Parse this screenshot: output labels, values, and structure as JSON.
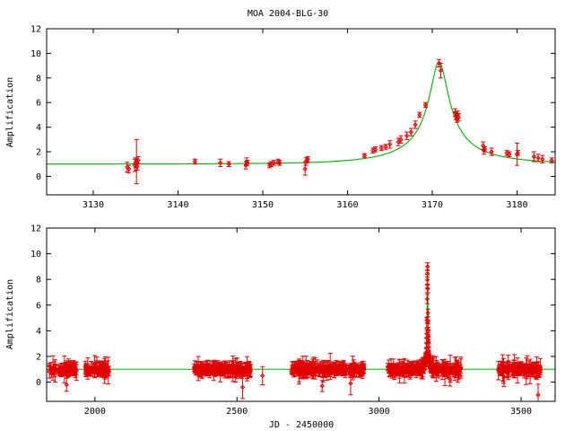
{
  "title": "MOA 2004-BLG-30",
  "chart_data": [
    {
      "type": "scatter",
      "title": "MOA 2004-BLG-30",
      "xlabel": "",
      "ylabel": "Amplification",
      "xlim": [
        3124.5,
        3184.5
      ],
      "ylim": [
        -1.5,
        12
      ],
      "xticks": [
        3130,
        3140,
        3150,
        3160,
        3170,
        3180
      ],
      "yticks": [
        0,
        2,
        4,
        6,
        8,
        10,
        12
      ],
      "grid": false,
      "legend": "none",
      "model": {
        "t0": 3170.8,
        "u0": 0.108,
        "tE": 10.2
      },
      "model_color": "#00b000",
      "point_color": "#e00000",
      "points": [
        [
          3134.0,
          0.75,
          0.4
        ],
        [
          3134.2,
          0.6,
          0.3
        ],
        [
          3134.9,
          0.9,
          0.5
        ],
        [
          3135.0,
          1.1,
          0.4
        ],
        [
          3135.1,
          1.2,
          1.8
        ],
        [
          3135.2,
          0.8,
          0.3
        ],
        [
          3135.3,
          1.3,
          0.3
        ],
        [
          3142.0,
          1.2,
          0.2
        ],
        [
          3145.0,
          1.1,
          0.3
        ],
        [
          3146.0,
          1.0,
          0.2
        ],
        [
          3148.0,
          0.9,
          0.3
        ],
        [
          3148.1,
          1.2,
          0.3
        ],
        [
          3148.2,
          1.1,
          0.2
        ],
        [
          3150.8,
          0.9,
          0.2
        ],
        [
          3151.0,
          1.0,
          0.2
        ],
        [
          3151.3,
          1.1,
          0.2
        ],
        [
          3151.8,
          1.2,
          0.2
        ],
        [
          3152.0,
          1.1,
          0.2
        ],
        [
          3155.0,
          0.6,
          0.5
        ],
        [
          3155.1,
          1.2,
          0.3
        ],
        [
          3155.2,
          1.3,
          0.2
        ],
        [
          3155.3,
          1.4,
          0.2
        ],
        [
          3162.0,
          1.7,
          0.15
        ],
        [
          3163.0,
          2.1,
          0.2
        ],
        [
          3163.3,
          2.2,
          0.2
        ],
        [
          3164.0,
          2.3,
          0.2
        ],
        [
          3164.5,
          2.4,
          0.2
        ],
        [
          3165.0,
          2.6,
          0.3
        ],
        [
          3166.0,
          2.8,
          0.3
        ],
        [
          3166.3,
          3.0,
          0.3
        ],
        [
          3167.0,
          3.3,
          0.3
        ],
        [
          3167.5,
          3.6,
          0.3
        ],
        [
          3168.0,
          4.2,
          0.3
        ],
        [
          3168.5,
          5.0,
          0.2
        ],
        [
          3169.2,
          5.8,
          0.2
        ],
        [
          3170.8,
          9.2,
          0.3
        ],
        [
          3171.0,
          8.6,
          0.6
        ],
        [
          3172.7,
          5.2,
          0.3
        ],
        [
          3172.8,
          4.9,
          0.3
        ],
        [
          3172.9,
          4.7,
          0.3
        ],
        [
          3173.0,
          5.0,
          0.3
        ],
        [
          3173.1,
          4.8,
          0.3
        ],
        [
          3176.0,
          2.5,
          0.3
        ],
        [
          3176.1,
          2.1,
          0.3
        ],
        [
          3176.2,
          2.2,
          0.2
        ],
        [
          3177.0,
          2.0,
          0.3
        ],
        [
          3178.8,
          1.9,
          0.2
        ],
        [
          3179.1,
          1.8,
          0.2
        ],
        [
          3180.0,
          1.8,
          0.9
        ],
        [
          3180.1,
          1.9,
          0.2
        ],
        [
          3182.0,
          1.6,
          0.4
        ],
        [
          3182.5,
          1.5,
          0.3
        ],
        [
          3183.0,
          1.4,
          0.3
        ],
        [
          3184.1,
          1.3,
          0.2
        ]
      ]
    },
    {
      "type": "scatter",
      "title": "",
      "xlabel": "JD - 2450000",
      "ylabel": "Amplification",
      "xlim": [
        1830,
        3620
      ],
      "ylim": [
        -1.5,
        12
      ],
      "xticks": [
        2000,
        2500,
        3000,
        3500
      ],
      "yticks": [
        0,
        2,
        4,
        6,
        8,
        10,
        12
      ],
      "grid": false,
      "legend": "none",
      "model": {
        "t0": 3170.8,
        "u0": 0.108,
        "tE": 10.2
      },
      "model_color": "#00b000",
      "point_color": "#e00000",
      "seasons": [
        [
          1840,
          1935
        ],
        [
          1965,
          2050
        ],
        [
          2350,
          2550
        ],
        [
          2690,
          2950
        ],
        [
          3030,
          3290
        ],
        [
          3420,
          3570
        ]
      ],
      "outliers": [
        [
          1900,
          -0.2
        ],
        [
          2520,
          -0.4
        ],
        [
          2590,
          0.5
        ],
        [
          2800,
          -0.3
        ],
        [
          2900,
          -0.1
        ],
        [
          3175,
          2.4
        ],
        [
          3250,
          0.2
        ],
        [
          3440,
          0.4
        ],
        [
          3560,
          -1.0
        ]
      ]
    }
  ]
}
